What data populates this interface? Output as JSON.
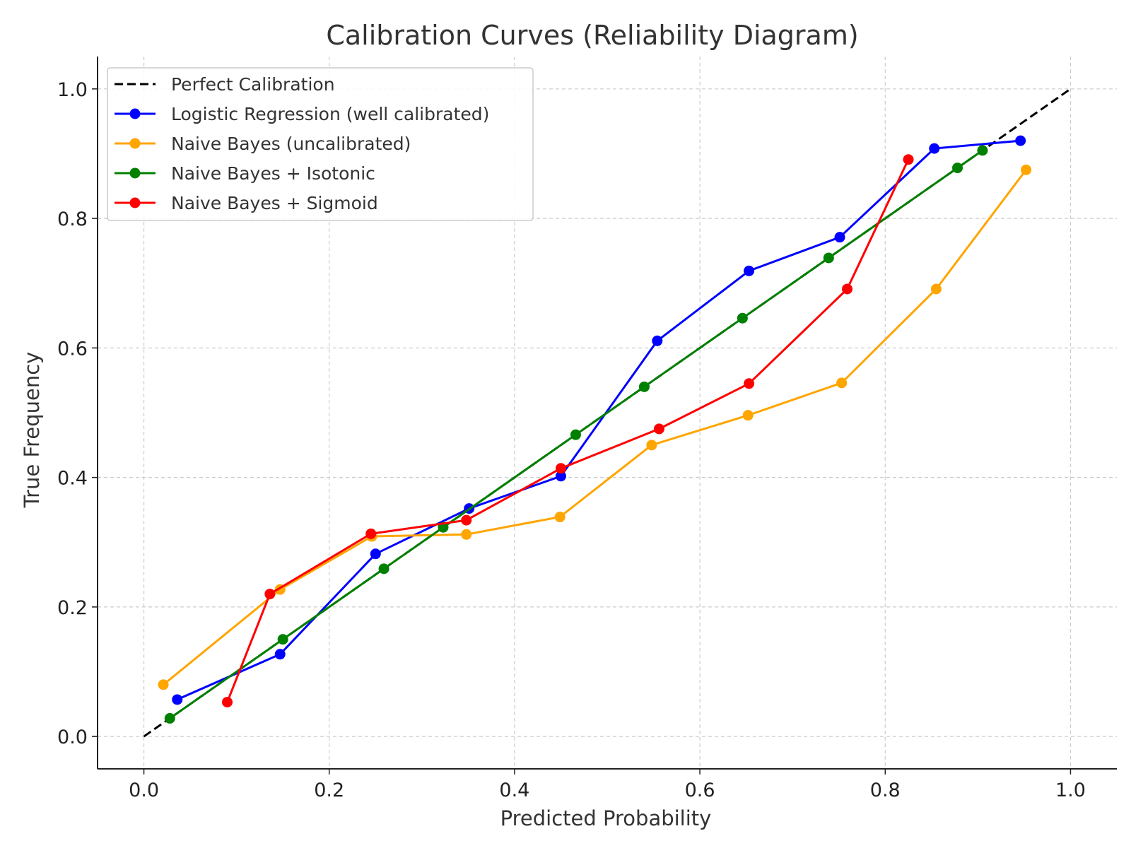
{
  "chart_data": {
    "type": "line",
    "title": "Calibration Curves (Reliability Diagram)",
    "xlabel": "Predicted Probability",
    "ylabel": "True Frequency",
    "xlim": [
      -0.05,
      1.05
    ],
    "ylim": [
      -0.05,
      1.05
    ],
    "xticks": [
      0.0,
      0.2,
      0.4,
      0.6,
      0.8,
      1.0
    ],
    "yticks": [
      0.0,
      0.2,
      0.4,
      0.6,
      0.8,
      1.0
    ],
    "tick_labels_x": [
      "0.0",
      "0.2",
      "0.4",
      "0.6",
      "0.8",
      "1.0"
    ],
    "tick_labels_y": [
      "0.0",
      "0.2",
      "0.4",
      "0.6",
      "0.8",
      "1.0"
    ],
    "grid": true,
    "legend_position": "upper-left",
    "series": [
      {
        "name": "Perfect Calibration",
        "color": "#000000",
        "style": "dashed",
        "markers": false,
        "x": [
          0.0,
          1.0
        ],
        "y": [
          0.0,
          1.0
        ]
      },
      {
        "name": "Logistic Regression (well calibrated)",
        "color": "#0000ff",
        "style": "solid",
        "markers": true,
        "x": [
          0.036,
          0.147,
          0.25,
          0.351,
          0.45,
          0.554,
          0.653,
          0.751,
          0.853,
          0.946
        ],
        "y": [
          0.057,
          0.127,
          0.282,
          0.352,
          0.402,
          0.611,
          0.719,
          0.771,
          0.908,
          0.92
        ]
      },
      {
        "name": "Naive Bayes (uncalibrated)",
        "color": "#ffa500",
        "style": "solid",
        "markers": true,
        "x": [
          0.021,
          0.147,
          0.246,
          0.348,
          0.449,
          0.548,
          0.652,
          0.753,
          0.855,
          0.952
        ],
        "y": [
          0.08,
          0.227,
          0.309,
          0.312,
          0.339,
          0.45,
          0.496,
          0.546,
          0.691,
          0.875
        ]
      },
      {
        "name": "Naive Bayes + Isotonic",
        "color": "#008000",
        "style": "solid",
        "markers": true,
        "x": [
          0.028,
          0.15,
          0.259,
          0.323,
          0.466,
          0.54,
          0.646,
          0.739,
          0.878,
          0.905
        ],
        "y": [
          0.028,
          0.15,
          0.259,
          0.323,
          0.466,
          0.54,
          0.646,
          0.739,
          0.878,
          0.905
        ]
      },
      {
        "name": "Naive Bayes + Sigmoid",
        "color": "#ff0000",
        "style": "solid",
        "markers": true,
        "x": [
          0.09,
          0.136,
          0.245,
          0.348,
          0.45,
          0.556,
          0.653,
          0.759,
          0.825
        ],
        "y": [
          0.053,
          0.22,
          0.313,
          0.334,
          0.414,
          0.475,
          0.545,
          0.691,
          0.891
        ]
      }
    ]
  }
}
